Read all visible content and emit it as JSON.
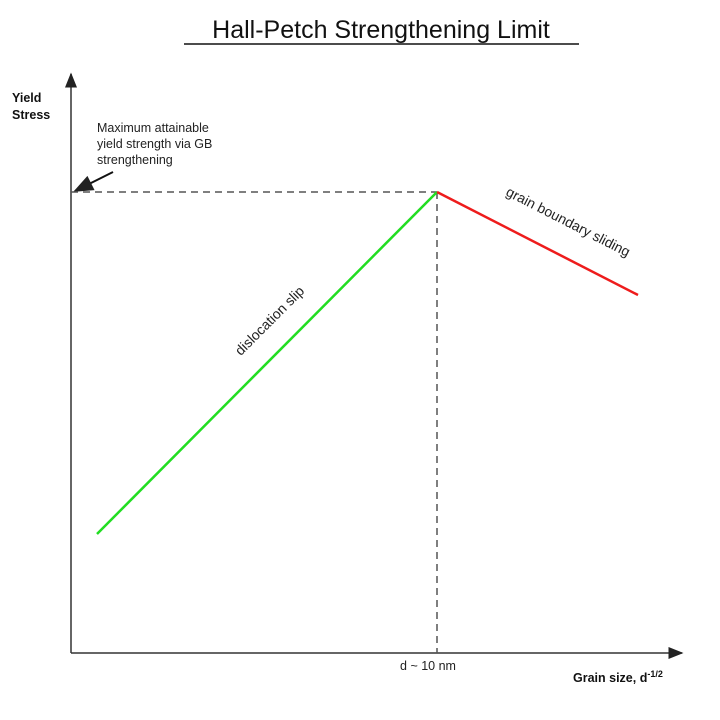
{
  "title": "Hall-Petch Strengthening Limit",
  "y_axis": {
    "label_line1": "Yield",
    "label_line2": "Stress"
  },
  "x_axis": {
    "label": "Grain size, d",
    "label_superscript": "-1/2"
  },
  "annotation": {
    "line1": "Maximum attainable",
    "line2": "yield strength via GB",
    "line3": "strengthening"
  },
  "peak_marker": "d ~ 10 nm",
  "segments": [
    {
      "label": "dislocation slip",
      "color": "#22dd22"
    },
    {
      "label": "grain boundary sliding",
      "color": "#ee1c1c"
    }
  ],
  "colors": {
    "axis": "#333333",
    "dashed": "#555555"
  }
}
